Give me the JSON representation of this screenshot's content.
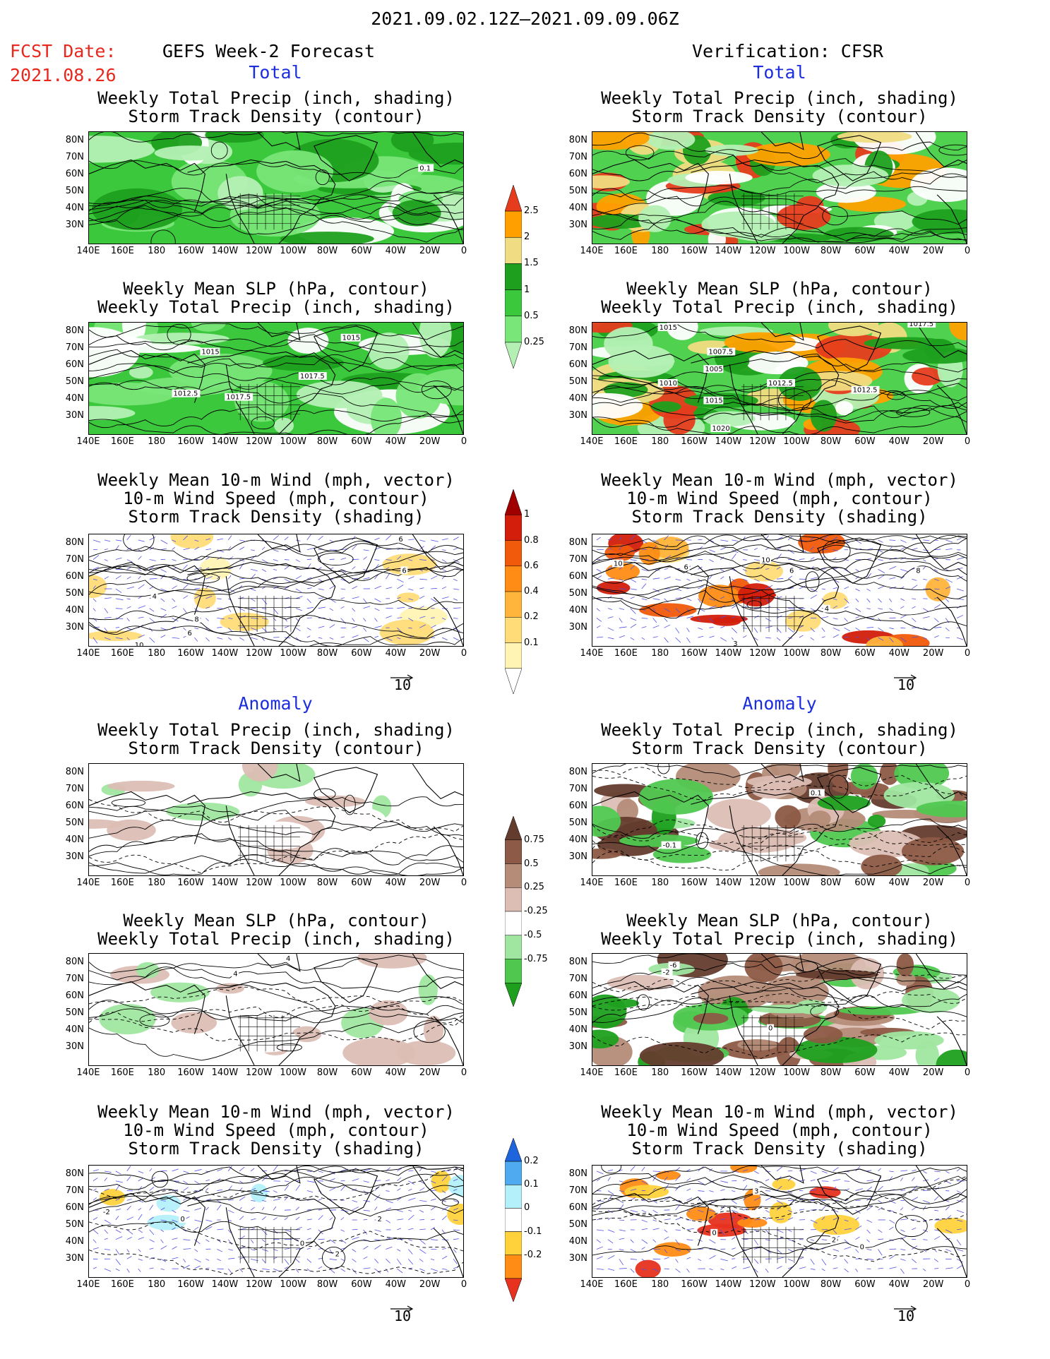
{
  "header": {
    "period": "2021.09.02.12Z–2021.09.09.06Z",
    "fcst_label": "FCST Date:",
    "fcst_date": "2021.08.26",
    "left_title": "GEFS Week-2 Forecast",
    "right_title": "Verification: CFSR"
  },
  "sections": {
    "total": "Total",
    "anomaly": "Anomaly"
  },
  "axes": {
    "lat": [
      "80N",
      "70N",
      "60N",
      "50N",
      "40N",
      "30N"
    ],
    "lon": [
      "140E",
      "160E",
      "180",
      "160W",
      "140W",
      "120W",
      "100W",
      "80W",
      "60W",
      "40W",
      "20W",
      "0"
    ]
  },
  "panels": {
    "p1": {
      "l1": "Weekly Total Precip (inch, shading)",
      "l2": "Storm Track Density (contour)"
    },
    "p2": {
      "l1": "Weekly Mean SLP (hPa, contour)",
      "l2": "Weekly Total Precip (inch, shading)"
    },
    "p3": {
      "l1": "Weekly Mean 10-m Wind (mph, vector)",
      "l2": "10-m Wind Speed (mph, contour)",
      "l3": "Storm Track Density (shading)"
    }
  },
  "map_labels": {
    "t1_left": [
      "0.1"
    ],
    "t2_left": [
      "1015",
      "1015",
      "1017.5",
      "1012.5",
      "1017.5"
    ],
    "t2_right": [
      "1015",
      "1017.5",
      "1007.5",
      "1005",
      "1010",
      "1012.5",
      "1015",
      "1012.5",
      "1020"
    ],
    "t3_left": [
      "6",
      "6",
      "4",
      "8",
      "6",
      "10"
    ],
    "t3_right": [
      "10",
      "6",
      "10",
      "6",
      "8",
      "4",
      "3"
    ],
    "a1_right": [
      "0.1",
      "-0.1"
    ],
    "a2_left": [
      "4",
      "4"
    ],
    "a2_right": [
      "-6",
      "-2",
      "0"
    ],
    "a3_left": [
      "-2",
      "0",
      "2",
      "0",
      "2"
    ],
    "a3_right": [
      "3",
      "0",
      "2",
      "0"
    ]
  },
  "colorbars": {
    "precip_total": {
      "levels": [
        "0.25",
        "0.5",
        "1",
        "1.5",
        "2",
        "2.5"
      ],
      "colors": [
        "#b4f0b4",
        "#78e678",
        "#3cc83c",
        "#1ea01e",
        "#f0dc82",
        "#ffa000",
        "#e63c1e"
      ]
    },
    "storm_total": {
      "levels": [
        "0.1",
        "0.2",
        "0.4",
        "0.6",
        "0.8",
        "1"
      ],
      "colors": [
        "#ffffff",
        "#fff4b4",
        "#ffdc78",
        "#ffb43c",
        "#ff8c14",
        "#f05a0a",
        "#d21e0a",
        "#a00000"
      ]
    },
    "precip_anom": {
      "levels": [
        "0.75",
        "0.5",
        "0.25",
        "-0.25",
        "-0.5",
        "-0.75"
      ],
      "colors": [
        "#1ea01e",
        "#50c850",
        "#a0e6a0",
        "#ffffff",
        "#dcbeb4",
        "#b48c78",
        "#8c5a46",
        "#643c2d"
      ]
    },
    "storm_anom": {
      "levels": [
        "0.2",
        "0.1",
        "0",
        "-0.1",
        "-0.2"
      ],
      "colors": [
        "#e6321e",
        "#ff8c14",
        "#ffd23c",
        "#ffffff",
        "#b4f0fa",
        "#50aaf0",
        "#1e64dc"
      ]
    }
  },
  "vector_reference": "10",
  "colors": {
    "title_red": "#e8281e",
    "section_blue": "#1c2dde",
    "wind_vector": "#5050e6"
  }
}
